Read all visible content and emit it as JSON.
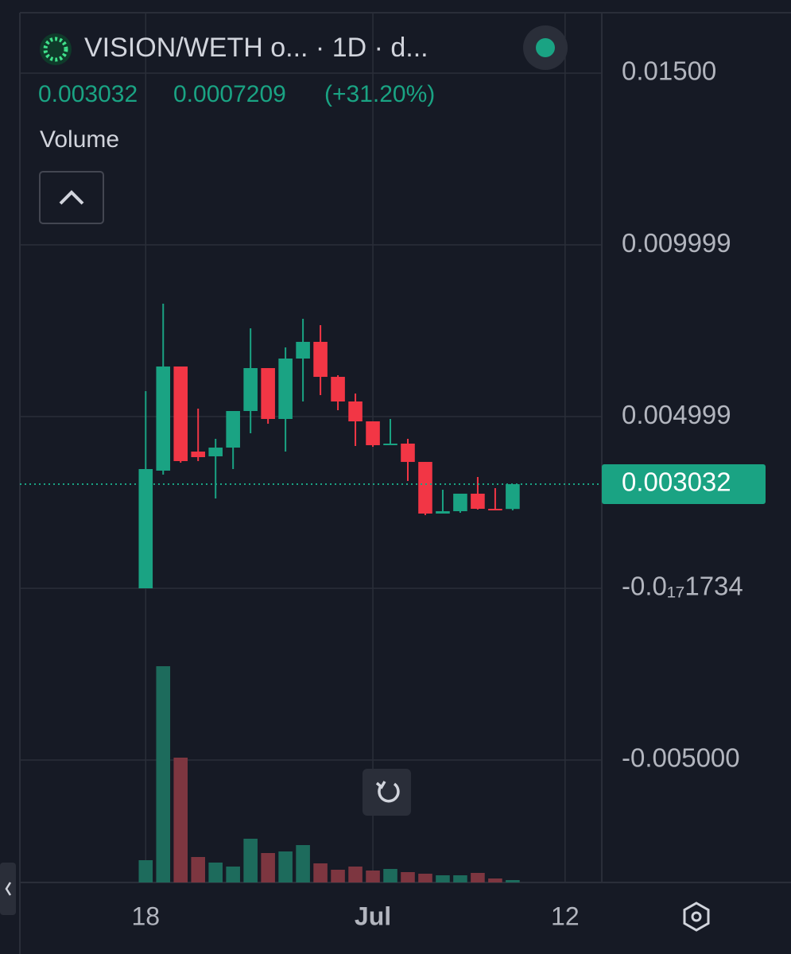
{
  "chart_data": {
    "type": "candlestick",
    "title": "VISION/WETH o... · 1D · d...",
    "legend": {
      "price": "0.003032",
      "change": "0.0007209",
      "change_pct": "(+31.20%)",
      "indicator": "Volume"
    },
    "x": [
      0,
      1,
      2,
      3,
      4,
      5,
      6,
      7,
      8,
      9,
      10,
      11,
      12,
      13,
      14,
      15,
      16,
      17,
      18,
      19,
      20,
      21
    ],
    "xlim": [
      -7.2,
      26.1
    ],
    "xticks": [
      {
        "value": 0,
        "label": "18"
      },
      {
        "value": 13,
        "label": "Jul"
      },
      {
        "value": 24,
        "label": "12"
      }
    ],
    "open": [
      0,
      0.003426,
      0.006458,
      0.003981,
      0.003843,
      0.004097,
      0.005162,
      0.006412,
      0.004931,
      0.00669,
      0.007176,
      0.006157,
      0.00544,
      0.004861,
      0.004167,
      0.004213,
      0.00368,
      0.002176,
      0.002245,
      0.002755,
      0.002315,
      0.00231
    ],
    "high": [
      0.00574,
      0.008287,
      0.006458,
      0.005231,
      0.004352,
      0.005162,
      0.007569,
      0.006412,
      0.007014,
      0.007847,
      0.007662,
      0.006204,
      0.005671,
      0.004861,
      0.00493,
      0.004352,
      0.00368,
      0.00287,
      0.002755,
      0.003241,
      0.002917,
      0.003032
    ],
    "low": [
      0,
      0.00331,
      0.003657,
      0.003704,
      0.002616,
      0.003472,
      0.004514,
      0.004792,
      0.003981,
      0.00544,
      0.005625,
      0.005185,
      0.004144,
      0.00412,
      0.004167,
      0.003125,
      0.00213,
      0.002176,
      0.002199,
      0.002292,
      0.00229,
      0.002269
    ],
    "close": [
      0.003472,
      0.006458,
      0.003704,
      0.003819,
      0.004097,
      0.005162,
      0.006412,
      0.004931,
      0.00669,
      0.007176,
      0.006157,
      0.00544,
      0.004861,
      0.004167,
      0.004213,
      0.00368,
      0.002176,
      0.002245,
      0.002755,
      0.002315,
      0.00229,
      0.003032
    ],
    "volume": [
      28,
      272,
      157,
      32,
      25,
      20,
      55,
      37,
      39,
      47,
      24,
      16,
      20,
      15,
      17,
      13,
      11,
      9,
      9,
      12,
      5,
      3
    ],
    "up_color": "#1aa383",
    "down_color": "#f23645",
    "volume_up_color": "#1d6b5c",
    "volume_down_color": "#7d3640",
    "ylim": [
      0.01713,
      -0.008565
    ],
    "yticks": [
      {
        "value": 0.015,
        "label": "0.01500"
      },
      0.009999,
      0.004999,
      {
        "value": -1.734e-21,
        "label": "-0.0₁₇1734"
      },
      {
        "value": -0.005,
        "label": "-0.005000"
      }
    ],
    "last_price": {
      "value": 0.003032,
      "label": "0.003032"
    },
    "grid": true
  }
}
